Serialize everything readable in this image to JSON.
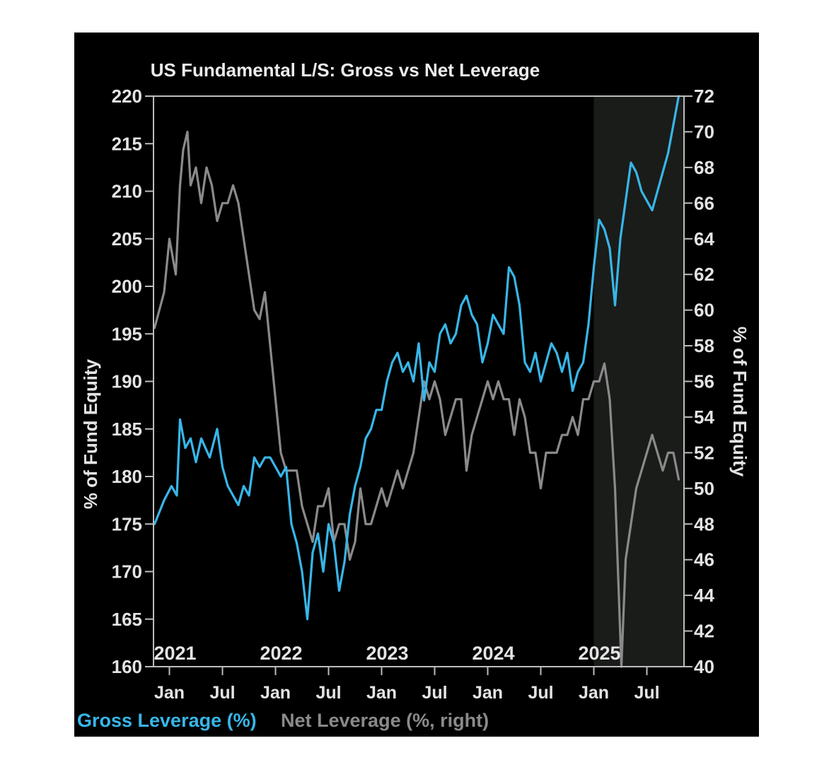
{
  "chart_data": {
    "type": "line",
    "title": "US Fundamental L/S: Gross vs Net Leverage",
    "ylabel_left": "% of Fund Equity",
    "ylabel_right": "% of Fund Equity",
    "ylim_left": [
      160,
      220
    ],
    "ylim_right": [
      40,
      72
    ],
    "yticks_left": [
      160,
      165,
      170,
      175,
      180,
      185,
      190,
      195,
      200,
      205,
      210,
      215,
      220
    ],
    "yticks_right": [
      40,
      42,
      44,
      46,
      48,
      50,
      52,
      54,
      56,
      58,
      60,
      62,
      64,
      66,
      68,
      70,
      72
    ],
    "xlim": [
      2020.85,
      2025.85
    ],
    "year_labels": [
      {
        "label": "2021",
        "x": 2021.0
      },
      {
        "label": "2022",
        "x": 2022.0
      },
      {
        "label": "2023",
        "x": 2023.0
      },
      {
        "label": "2024",
        "x": 2024.0
      },
      {
        "label": "2025",
        "x": 2025.0
      }
    ],
    "month_ticks": [
      {
        "label": "Jan",
        "x": 2021.0
      },
      {
        "label": "Jul",
        "x": 2021.5
      },
      {
        "label": "Jan",
        "x": 2022.0
      },
      {
        "label": "Jul",
        "x": 2022.5
      },
      {
        "label": "Jan",
        "x": 2023.0
      },
      {
        "label": "Jul",
        "x": 2023.5
      },
      {
        "label": "Jan",
        "x": 2024.0
      },
      {
        "label": "Jul",
        "x": 2024.5
      },
      {
        "label": "Jan",
        "x": 2025.0
      },
      {
        "label": "Jul",
        "x": 2025.5
      }
    ],
    "shaded_region": {
      "from": 2025.0,
      "to": 2025.85,
      "color": "#1a1c1a"
    },
    "series": [
      {
        "name": "Gross Leverage (%)",
        "axis": "left",
        "color": "#38b6e8",
        "x": [
          2020.86,
          2020.95,
          2021.02,
          2021.07,
          2021.1,
          2021.15,
          2021.2,
          2021.25,
          2021.3,
          2021.38,
          2021.45,
          2021.5,
          2021.55,
          2021.6,
          2021.65,
          2021.7,
          2021.75,
          2021.8,
          2021.85,
          2021.9,
          2021.95,
          2022.0,
          2022.05,
          2022.1,
          2022.15,
          2022.2,
          2022.25,
          2022.3,
          2022.35,
          2022.4,
          2022.45,
          2022.5,
          2022.55,
          2022.6,
          2022.65,
          2022.7,
          2022.75,
          2022.8,
          2022.85,
          2022.9,
          2022.95,
          2023.0,
          2023.05,
          2023.1,
          2023.15,
          2023.2,
          2023.25,
          2023.3,
          2023.35,
          2023.4,
          2023.45,
          2023.5,
          2023.55,
          2023.6,
          2023.65,
          2023.7,
          2023.75,
          2023.8,
          2023.85,
          2023.9,
          2023.95,
          2024.0,
          2024.05,
          2024.1,
          2024.15,
          2024.2,
          2024.25,
          2024.3,
          2024.35,
          2024.4,
          2024.45,
          2024.5,
          2024.55,
          2024.6,
          2024.65,
          2024.7,
          2024.75,
          2024.8,
          2024.85,
          2024.9,
          2024.95,
          2025.0,
          2025.05,
          2025.1,
          2025.15,
          2025.2,
          2025.25,
          2025.3,
          2025.35,
          2025.4,
          2025.45,
          2025.5,
          2025.55,
          2025.6,
          2025.65,
          2025.7,
          2025.75,
          2025.8
        ],
        "values": [
          175,
          177.5,
          179,
          178,
          186,
          183,
          184,
          181.5,
          184,
          182,
          185,
          181,
          179,
          178,
          177,
          179,
          178,
          182,
          181,
          182,
          182,
          181,
          180,
          181,
          175,
          173,
          170,
          165,
          172,
          174,
          170,
          175,
          173,
          168,
          171,
          176,
          179,
          181,
          184,
          185,
          187,
          187,
          190,
          192,
          193,
          191,
          192,
          190,
          194,
          188,
          192,
          191,
          195,
          196,
          194,
          195,
          198,
          199,
          197,
          196,
          192,
          194,
          197,
          196,
          195,
          202,
          201,
          198,
          192,
          191,
          193,
          190,
          192,
          194,
          193,
          191,
          193,
          189,
          191,
          192,
          196,
          202,
          207,
          206,
          204,
          198,
          205,
          209,
          213,
          212,
          210,
          209,
          208,
          210,
          212,
          214,
          217,
          220
        ]
      },
      {
        "name": "Net Leverage (%, right)",
        "axis": "right",
        "color": "#8a8a8a",
        "x": [
          2020.86,
          2020.95,
          2021.0,
          2021.06,
          2021.1,
          2021.13,
          2021.17,
          2021.2,
          2021.25,
          2021.3,
          2021.35,
          2021.4,
          2021.45,
          2021.5,
          2021.55,
          2021.6,
          2021.65,
          2021.7,
          2021.75,
          2021.8,
          2021.85,
          2021.9,
          2021.95,
          2022.0,
          2022.05,
          2022.1,
          2022.15,
          2022.2,
          2022.25,
          2022.3,
          2022.35,
          2022.4,
          2022.45,
          2022.5,
          2022.55,
          2022.6,
          2022.65,
          2022.7,
          2022.75,
          2022.8,
          2022.85,
          2022.9,
          2022.95,
          2023.0,
          2023.05,
          2023.1,
          2023.15,
          2023.2,
          2023.25,
          2023.3,
          2023.35,
          2023.4,
          2023.45,
          2023.5,
          2023.55,
          2023.6,
          2023.65,
          2023.7,
          2023.75,
          2023.8,
          2023.85,
          2023.9,
          2023.95,
          2024.0,
          2024.05,
          2024.1,
          2024.15,
          2024.2,
          2024.25,
          2024.3,
          2024.35,
          2024.4,
          2024.45,
          2024.5,
          2024.55,
          2024.6,
          2024.65,
          2024.7,
          2024.75,
          2024.8,
          2024.85,
          2024.9,
          2024.95,
          2025.0,
          2025.05,
          2025.1,
          2025.15,
          2025.2,
          2025.23,
          2025.26,
          2025.3,
          2025.35,
          2025.4,
          2025.45,
          2025.5,
          2025.55,
          2025.6,
          2025.65,
          2025.7,
          2025.75,
          2025.8
        ],
        "values": [
          59,
          61,
          64,
          62,
          67,
          69,
          70,
          67,
          68,
          66,
          68,
          67,
          65,
          66,
          66,
          67,
          66,
          64,
          62,
          60,
          59.5,
          61,
          58,
          55,
          52,
          51,
          51,
          51,
          49,
          48,
          47,
          49,
          49,
          50,
          47,
          48,
          48,
          46,
          47,
          50,
          48,
          48,
          49,
          50,
          49,
          50,
          51,
          50,
          51,
          52,
          54,
          56,
          55,
          56,
          55,
          53,
          54,
          55,
          55,
          51,
          53,
          54,
          55,
          56,
          55,
          56,
          55,
          55,
          53,
          55,
          54,
          52,
          52,
          50,
          52,
          52,
          52,
          53,
          53,
          54,
          53,
          55,
          55,
          56,
          56,
          57,
          55,
          50,
          45,
          40,
          46,
          48,
          50,
          51,
          52,
          53,
          52,
          51,
          52,
          52,
          50.5
        ]
      }
    ],
    "legend": [
      {
        "label": "Gross Leverage (%)",
        "color": "#38b6e8"
      },
      {
        "label": "Net Leverage (%, right)",
        "color": "#8a8a8a"
      }
    ],
    "legend_position": "bottom-left"
  }
}
